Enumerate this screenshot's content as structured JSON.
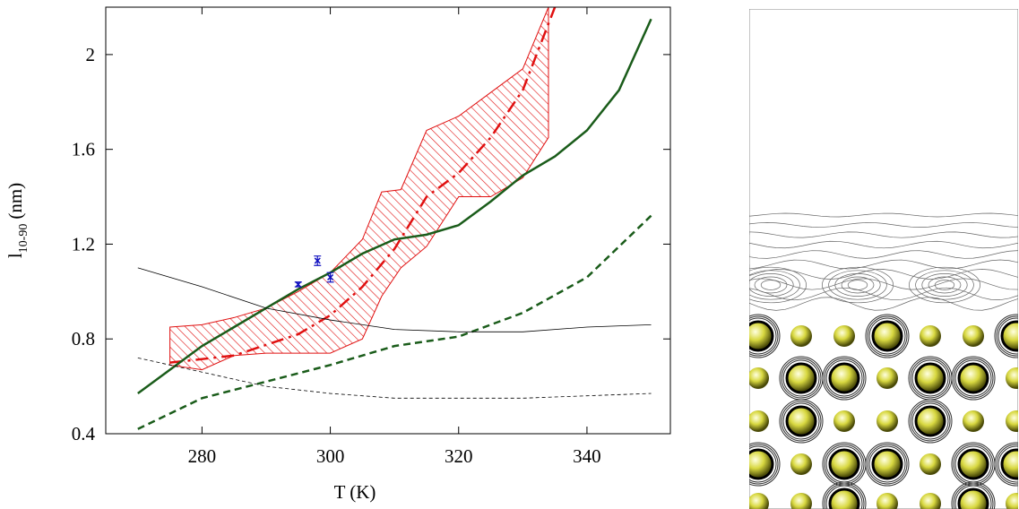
{
  "chart_data": {
    "type": "line",
    "xlabel": "T (K)",
    "ylabel": "l",
    "ylabel_sub": "10-90",
    "ylabel_unit": "(nm)",
    "xlim": [
      265,
      353
    ],
    "ylim": [
      0.4,
      2.2
    ],
    "xticks": [
      280,
      300,
      320,
      340
    ],
    "yticks": [
      0.4,
      0.8,
      1.2,
      1.6,
      2
    ],
    "series": [
      {
        "kind": "band",
        "color": "#e01010",
        "x": [
          275,
          280,
          285,
          290,
          295,
          300,
          305,
          308,
          311,
          315,
          320,
          325,
          330,
          334
        ],
        "upper": [
          0.85,
          0.86,
          0.89,
          0.93,
          1.0,
          1.08,
          1.22,
          1.42,
          1.43,
          1.68,
          1.74,
          1.84,
          1.94,
          2.2
        ],
        "lower": [
          0.69,
          0.67,
          0.73,
          0.74,
          0.74,
          0.74,
          0.8,
          0.98,
          1.1,
          1.19,
          1.4,
          1.4,
          1.48,
          1.65
        ]
      },
      {
        "kind": "line",
        "color": "#e01010",
        "dash": "14 6 3 6",
        "width": 2.5,
        "x": [
          275,
          285,
          295,
          300,
          305,
          310,
          315,
          320,
          325,
          330,
          335
        ],
        "values": [
          0.7,
          0.73,
          0.82,
          0.9,
          1.02,
          1.18,
          1.4,
          1.5,
          1.65,
          1.85,
          2.2
        ]
      },
      {
        "kind": "line",
        "color": "#1a5c1a",
        "dash": "",
        "width": 2.5,
        "x": [
          270,
          275,
          280,
          285,
          290,
          295,
          300,
          305,
          310,
          315,
          320,
          325,
          330,
          335,
          340,
          345,
          350
        ],
        "values": [
          0.57,
          0.67,
          0.77,
          0.85,
          0.93,
          1.01,
          1.08,
          1.16,
          1.22,
          1.24,
          1.28,
          1.38,
          1.49,
          1.57,
          1.68,
          1.85,
          2.15
        ]
      },
      {
        "kind": "line",
        "color": "#1a5c1a",
        "dash": "8 5",
        "width": 2.5,
        "x": [
          270,
          280,
          290,
          300,
          310,
          320,
          330,
          340,
          350
        ],
        "values": [
          0.42,
          0.55,
          0.62,
          0.69,
          0.77,
          0.81,
          0.91,
          1.06,
          1.32
        ]
      },
      {
        "kind": "line",
        "color": "#000000",
        "dash": "",
        "width": 0.8,
        "x": [
          270,
          280,
          290,
          300,
          310,
          320,
          330,
          340,
          350
        ],
        "values": [
          1.1,
          1.02,
          0.93,
          0.88,
          0.84,
          0.83,
          0.83,
          0.85,
          0.86
        ]
      },
      {
        "kind": "line",
        "color": "#000000",
        "dash": "4 3",
        "width": 0.8,
        "x": [
          270,
          280,
          290,
          300,
          310,
          320,
          330,
          340,
          350
        ],
        "values": [
          0.72,
          0.66,
          0.6,
          0.57,
          0.55,
          0.55,
          0.55,
          0.56,
          0.57
        ]
      },
      {
        "kind": "errorbar",
        "color": "#1010c0",
        "x": [
          295,
          298,
          300
        ],
        "values": [
          1.03,
          1.13,
          1.06
        ],
        "errors": [
          0.01,
          0.02,
          0.02
        ]
      }
    ]
  }
}
